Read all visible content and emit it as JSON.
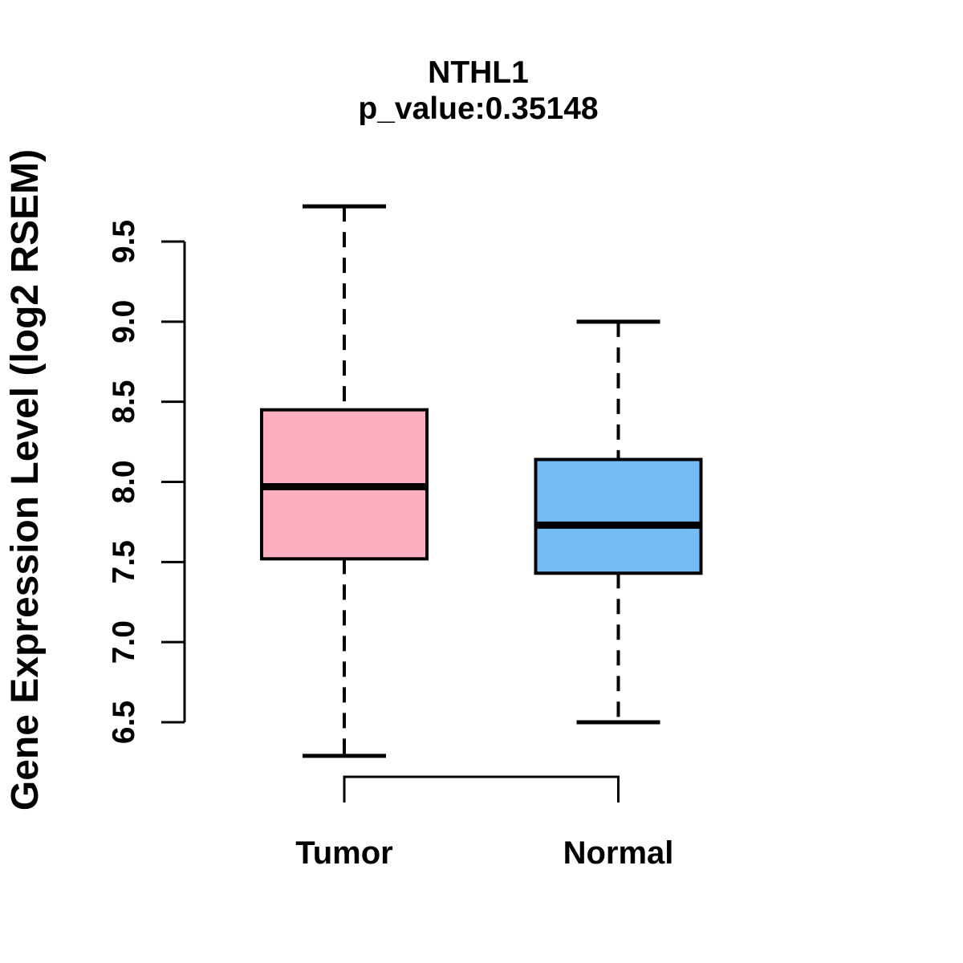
{
  "figure": {
    "title": "NTHL1",
    "subtitle": "p_value:0.35148",
    "y_axis_label": "Gene Expression Level (log2 RSEM)"
  },
  "chart_data": {
    "type": "boxplot",
    "title": "NTHL1",
    "subtitle": "p_value:0.35148",
    "ylabel": "Gene Expression Level (log2 RSEM)",
    "xlabel": "",
    "categories": [
      "Tumor",
      "Normal"
    ],
    "series": [
      {
        "name": "Tumor",
        "color": "#FDAEC0",
        "lower_whisker": 6.29,
        "q1": 7.52,
        "median": 7.97,
        "q3": 8.45,
        "upper_whisker": 9.72
      },
      {
        "name": "Normal",
        "color": "#74BDF4",
        "lower_whisker": 6.5,
        "q1": 7.43,
        "median": 7.73,
        "q3": 8.14,
        "upper_whisker": 9.0
      }
    ],
    "y_ticks": [
      6.5,
      7.0,
      7.5,
      8.0,
      8.5,
      9.0,
      9.5
    ],
    "y_tick_labels": [
      "6.5",
      "7.0",
      "7.5",
      "8.0",
      "8.5",
      "9.0",
      "9.5"
    ],
    "ylim": [
      6.29,
      9.72
    ],
    "grid": false,
    "legend_position": "none",
    "outline_color": "#000000",
    "background_color": "#FFFFFF",
    "whisker_style": "dashed",
    "comparison_bracket": {
      "from": "Tumor",
      "to": "Normal"
    }
  }
}
